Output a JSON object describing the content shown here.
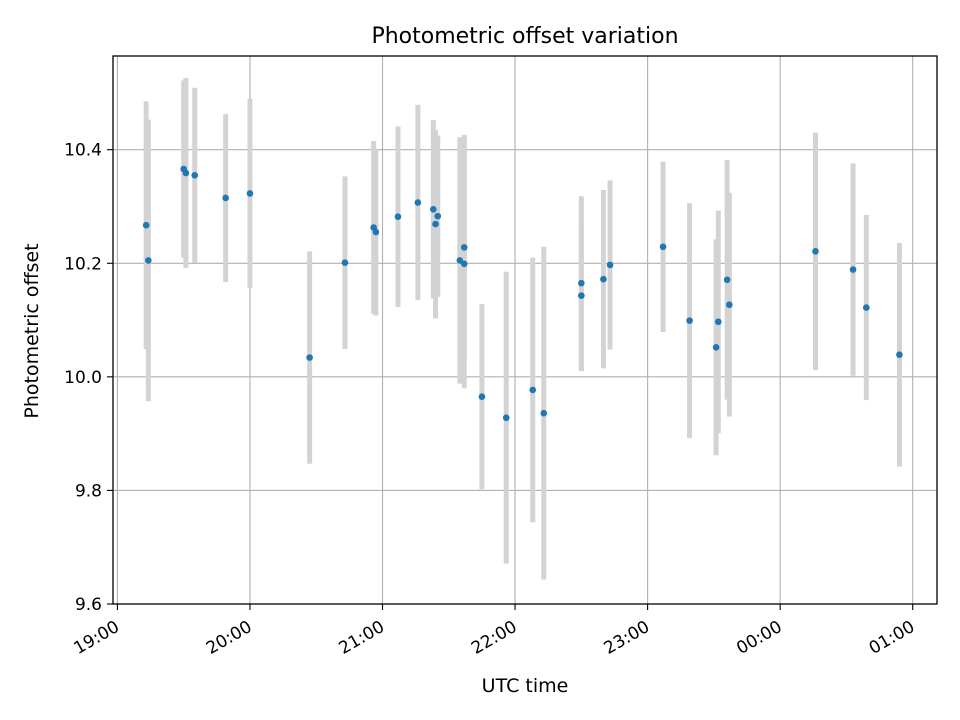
{
  "chart_data": {
    "type": "scatter",
    "title": "Photometric offset variation",
    "xlabel": "UTC time",
    "ylabel": "Photometric offset",
    "x_axis": {
      "kind": "time",
      "start": "2000-01-01T19:00",
      "end": "2000-01-02T01:10",
      "lim": [
        "2000-01-01T18:58",
        "2000-01-02T01:11"
      ]
    },
    "ylim": [
      9.6,
      10.565
    ],
    "x_ticks": [
      {
        "label": "19:00",
        "time": "2000-01-01T19:00"
      },
      {
        "label": "20:00",
        "time": "2000-01-01T20:00"
      },
      {
        "label": "21:00",
        "time": "2000-01-01T21:00"
      },
      {
        "label": "22:00",
        "time": "2000-01-01T22:00"
      },
      {
        "label": "23:00",
        "time": "2000-01-01T23:00"
      },
      {
        "label": "00:00",
        "time": "2000-01-02T00:00"
      },
      {
        "label": "01:00",
        "time": "2000-01-02T01:00"
      }
    ],
    "y_ticks": [
      {
        "label": "9.6",
        "value": 9.6
      },
      {
        "label": "9.8",
        "value": 9.8
      },
      {
        "label": "10.0",
        "value": 10.0
      },
      {
        "label": "10.2",
        "value": 10.2
      },
      {
        "label": "10.4",
        "value": 10.4
      }
    ],
    "grid": true,
    "colors": {
      "point": "#1f77b4",
      "errorbar": "#d3d3d3",
      "grid": "#b0b0b0",
      "axes": "#000000"
    },
    "points": [
      {
        "time": "2000-01-01T19:13",
        "y": 10.267,
        "err": 0.218
      },
      {
        "time": "2000-01-01T19:14",
        "y": 10.205,
        "err": 0.248
      },
      {
        "time": "2000-01-01T19:30",
        "y": 10.366,
        "err": 0.156
      },
      {
        "time": "2000-01-01T19:31",
        "y": 10.359,
        "err": 0.167
      },
      {
        "time": "2000-01-01T19:35",
        "y": 10.355,
        "err": 0.154
      },
      {
        "time": "2000-01-01T19:49",
        "y": 10.315,
        "err": 0.148
      },
      {
        "time": "2000-01-01T20:00",
        "y": 10.323,
        "err": 0.167
      },
      {
        "time": "2000-01-01T20:27",
        "y": 10.034,
        "err": 0.187
      },
      {
        "time": "2000-01-01T20:43",
        "y": 10.201,
        "err": 0.152
      },
      {
        "time": "2000-01-01T20:56",
        "y": 10.263,
        "err": 0.152
      },
      {
        "time": "2000-01-01T20:57",
        "y": 10.255,
        "err": 0.147
      },
      {
        "time": "2000-01-01T21:07",
        "y": 10.282,
        "err": 0.159
      },
      {
        "time": "2000-01-01T21:16",
        "y": 10.307,
        "err": 0.172
      },
      {
        "time": "2000-01-01T21:23",
        "y": 10.295,
        "err": 0.157
      },
      {
        "time": "2000-01-01T21:24",
        "y": 10.269,
        "err": 0.166
      },
      {
        "time": "2000-01-01T21:25",
        "y": 10.283,
        "err": 0.142
      },
      {
        "time": "2000-01-01T21:35",
        "y": 10.205,
        "err": 0.217
      },
      {
        "time": "2000-01-01T21:37",
        "y": 10.228,
        "err": 0.198
      },
      {
        "time": "2000-01-01T21:37",
        "y": 10.199,
        "err": 0.219
      },
      {
        "time": "2000-01-01T21:45",
        "y": 9.965,
        "err": 0.163
      },
      {
        "time": "2000-01-01T21:56",
        "y": 9.928,
        "err": 0.257
      },
      {
        "time": "2000-01-01T22:08",
        "y": 9.977,
        "err": 0.233
      },
      {
        "time": "2000-01-01T22:13",
        "y": 9.936,
        "err": 0.293
      },
      {
        "time": "2000-01-01T22:30",
        "y": 10.165,
        "err": 0.153
      },
      {
        "time": "2000-01-01T22:30",
        "y": 10.143,
        "err": 0.133
      },
      {
        "time": "2000-01-01T22:40",
        "y": 10.172,
        "err": 0.157
      },
      {
        "time": "2000-01-01T22:43",
        "y": 10.197,
        "err": 0.149
      },
      {
        "time": "2000-01-01T23:07",
        "y": 10.229,
        "err": 0.15
      },
      {
        "time": "2000-01-01T23:19",
        "y": 10.099,
        "err": 0.207
      },
      {
        "time": "2000-01-01T23:31",
        "y": 10.052,
        "err": 0.19
      },
      {
        "time": "2000-01-01T23:32",
        "y": 10.097,
        "err": 0.196
      },
      {
        "time": "2000-01-01T23:36",
        "y": 10.171,
        "err": 0.211
      },
      {
        "time": "2000-01-01T23:37",
        "y": 10.127,
        "err": 0.197
      },
      {
        "time": "2000-01-02T00:16",
        "y": 10.221,
        "err": 0.209
      },
      {
        "time": "2000-01-02T00:33",
        "y": 10.189,
        "err": 0.187
      },
      {
        "time": "2000-01-02T00:39",
        "y": 10.122,
        "err": 0.163
      },
      {
        "time": "2000-01-02T00:54",
        "y": 10.039,
        "err": 0.197
      }
    ]
  }
}
